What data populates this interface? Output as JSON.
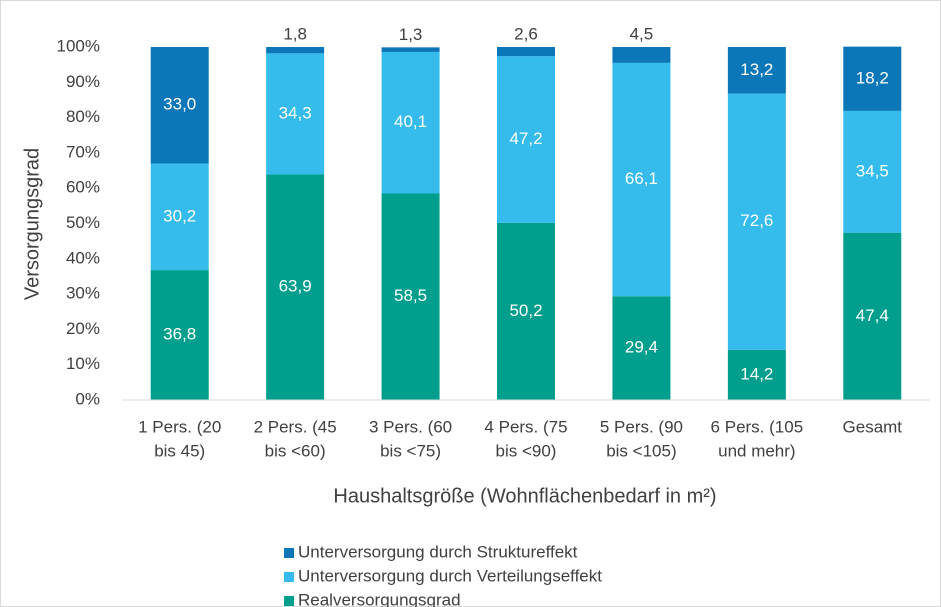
{
  "chart_data": {
    "type": "stacked_bar",
    "categories": [
      [
        "1 Pers. (20",
        "bis 45)"
      ],
      [
        "2 Pers. (45",
        "bis <60)"
      ],
      [
        "3 Pers. (60",
        "bis <75)"
      ],
      [
        "4 Pers. (75",
        "bis <90)"
      ],
      [
        "5 Pers. (90",
        "bis <105)"
      ],
      [
        "6 Pers. (105",
        "und mehr)"
      ],
      [
        "Gesamt"
      ]
    ],
    "series": [
      {
        "name": "Realversorgungsgrad",
        "color": "#009e8c",
        "values": [
          36.8,
          63.9,
          58.5,
          50.2,
          29.4,
          14.2,
          47.4
        ],
        "value_labels": [
          "36,8",
          "63,9",
          "58,5",
          "50,2",
          "29,4",
          "14,2",
          "47,4"
        ]
      },
      {
        "name": "Unterversorgung durch Verteilungseffekt",
        "color": "#35bbec",
        "values": [
          30.2,
          34.3,
          40.1,
          47.2,
          66.1,
          72.6,
          34.5
        ],
        "value_labels": [
          "30,2",
          "34,3",
          "40,1",
          "47,2",
          "66,1",
          "72,6",
          "34,5"
        ]
      },
      {
        "name": "Unterversorgung durch Struktureffekt",
        "color": "#0b76b8",
        "values": [
          33.0,
          1.8,
          1.3,
          2.6,
          4.5,
          13.2,
          18.2
        ],
        "value_labels": [
          "33,0",
          "1,8",
          "1,3",
          "2,6",
          "4,5",
          "13,2",
          "18,2"
        ]
      }
    ],
    "ylabel": "Versorgungsgrad",
    "xlabel": "Haushaltsgröße (Wohnflächenbedarf in m²)",
    "ylim": [
      0,
      100
    ],
    "yticks": [
      {
        "value": 0,
        "label": "0%"
      },
      {
        "value": 10,
        "label": "10%"
      },
      {
        "value": 20,
        "label": "20%"
      },
      {
        "value": 30,
        "label": "30%"
      },
      {
        "value": 40,
        "label": "40%"
      },
      {
        "value": 50,
        "label": "50%"
      },
      {
        "value": 60,
        "label": "60%"
      },
      {
        "value": 70,
        "label": "70%"
      },
      {
        "value": 80,
        "label": "80%"
      },
      {
        "value": 90,
        "label": "90%"
      },
      {
        "value": 100,
        "label": "100%"
      }
    ],
    "grid": false,
    "legend": "bottom"
  }
}
